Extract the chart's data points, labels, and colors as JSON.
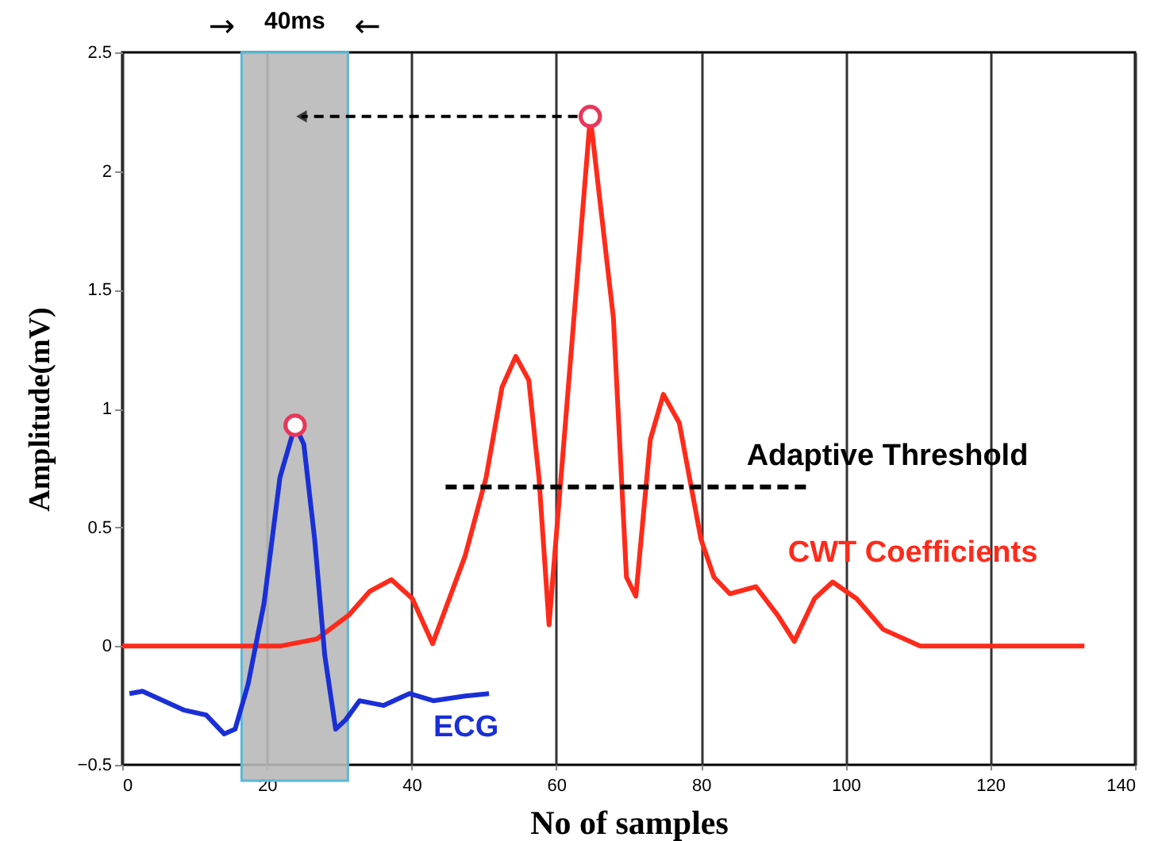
{
  "chart_data": {
    "type": "line",
    "xlabel": "No of samples",
    "ylabel": "Amplitude(mV)",
    "xlim": [
      0,
      140
    ],
    "ylim": [
      -0.5,
      2.5
    ],
    "xticks": [
      0,
      20,
      40,
      60,
      80,
      100,
      120,
      140
    ],
    "yticks": [
      -0.5,
      0,
      0.5,
      1,
      1.5,
      2,
      2.5
    ],
    "grid": "x",
    "annotations": [
      "→",
      "←"
    ],
    "bands": [
      {
        "axis": "x",
        "from": 16.5,
        "to": 31.2,
        "label": "40ms",
        "color": "#b9b9b9"
      }
    ],
    "series": [
      {
        "name": "CWT Coefficients",
        "color": "#ff2a1a",
        "x": [
          0,
          21.8,
          26.9,
          31.3,
          34.2,
          37.2,
          40.1,
          42.9,
          47.4,
          50.3,
          52.5,
          54.4,
          56.2,
          57.6,
          59.0,
          64.7,
          67.9,
          69.7,
          71.0,
          73.0,
          74.8,
          77.0,
          80.0,
          81.8,
          84.0,
          87.6,
          90.6,
          92.9,
          95.7,
          98.2,
          101.5,
          105.2,
          110.3,
          133
        ],
        "values": [
          0,
          0,
          0.03,
          0.13,
          0.23,
          0.28,
          0.2,
          0.01,
          0.38,
          0.71,
          1.09,
          1.22,
          1.12,
          0.71,
          0.09,
          2.23,
          1.38,
          0.29,
          0.21,
          0.87,
          1.06,
          0.94,
          0.45,
          0.29,
          0.22,
          0.25,
          0.13,
          0.02,
          0.2,
          0.27,
          0.2,
          0.07,
          0,
          0
        ]
      },
      {
        "name": "ECG",
        "color": "#1a2fd6",
        "x": [
          1.0,
          2.8,
          5.7,
          8.6,
          11.6,
          14.1,
          15.6,
          17.4,
          19.6,
          21.8,
          23.9,
          25.1,
          26.6,
          28.0,
          29.5,
          30.9,
          32.8,
          36.1,
          39.7,
          43.0,
          47.4,
          50.7
        ],
        "values": [
          -0.2,
          -0.19,
          -0.23,
          -0.27,
          -0.29,
          -0.37,
          -0.35,
          -0.16,
          0.18,
          0.71,
          0.93,
          0.85,
          0.45,
          -0.04,
          -0.35,
          -0.31,
          -0.23,
          -0.25,
          -0.2,
          -0.23,
          -0.21,
          -0.2
        ]
      },
      {
        "name": "Adaptive Threshold",
        "color": "#000000",
        "line_style": "dashed",
        "x": [
          44.7,
          94.6
        ],
        "values": [
          0.67,
          0.67
        ]
      },
      {
        "type": "scatter",
        "marker": "circle",
        "color": "#e8375a",
        "x": [
          23.9,
          64.7
        ],
        "values": [
          0.93,
          2.23
        ]
      }
    ]
  }
}
